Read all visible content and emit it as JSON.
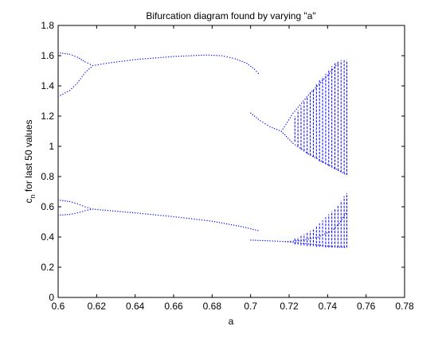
{
  "chart_data": {
    "type": "scatter",
    "title": "Bifurcation diagram found by varying \"a\"",
    "xlabel": "a",
    "ylabel_base": "c",
    "ylabel_sub": "n",
    "ylabel_rest": " for last 50 values",
    "xlim": [
      0.6,
      0.78
    ],
    "ylim": [
      0,
      1.8
    ],
    "xticks": [
      "0.6",
      "0.62",
      "0.64",
      "0.66",
      "0.68",
      "0.7",
      "0.72",
      "0.74",
      "0.76",
      "0.78"
    ],
    "yticks": [
      "0",
      "0.2",
      "0.4",
      "0.6",
      "0.8",
      "1",
      "1.2",
      "1.4",
      "1.6",
      "1.8"
    ],
    "grid": false,
    "legend": "none",
    "marker_color": "#0000ff",
    "series": [
      {
        "branches": [
          {
            "points": [
              [
                0.6,
                1.62
              ],
              [
                0.606,
                1.61
              ],
              [
                0.61,
                1.59
              ],
              [
                0.614,
                1.56
              ],
              [
                0.618,
                1.535
              ]
            ]
          },
          {
            "points": [
              [
                0.6,
                1.33
              ],
              [
                0.606,
                1.37
              ],
              [
                0.61,
                1.42
              ],
              [
                0.614,
                1.49
              ],
              [
                0.618,
                1.535
              ]
            ]
          },
          {
            "points": [
              [
                0.618,
                1.535
              ],
              [
                0.625,
                1.55
              ],
              [
                0.64,
                1.575
              ],
              [
                0.66,
                1.595
              ],
              [
                0.677,
                1.605
              ],
              [
                0.685,
                1.6
              ],
              [
                0.692,
                1.58
              ],
              [
                0.698,
                1.55
              ],
              [
                0.702,
                1.51
              ],
              [
                0.705,
                1.47
              ]
            ]
          },
          {
            "points": [
              [
                0.7,
                1.22
              ],
              [
                0.705,
                1.17
              ],
              [
                0.71,
                1.13
              ],
              [
                0.716,
                1.1
              ]
            ]
          },
          {
            "points": [
              [
                0.716,
                1.1
              ],
              [
                0.722,
                1.22
              ],
              [
                0.73,
                1.34
              ],
              [
                0.74,
                1.47
              ],
              [
                0.746,
                1.56
              ]
            ]
          },
          {
            "points": [
              [
                0.716,
                1.1
              ],
              [
                0.722,
                1.02
              ],
              [
                0.73,
                0.95
              ],
              [
                0.74,
                0.88
              ],
              [
                0.75,
                0.81
              ]
            ]
          },
          {
            "points": [
              [
                0.6,
                0.645
              ],
              [
                0.606,
                0.635
              ],
              [
                0.61,
                0.62
              ],
              [
                0.614,
                0.6
              ],
              [
                0.618,
                0.585
              ]
            ]
          },
          {
            "points": [
              [
                0.6,
                0.545
              ],
              [
                0.606,
                0.55
              ],
              [
                0.61,
                0.56
              ],
              [
                0.614,
                0.575
              ],
              [
                0.618,
                0.585
              ]
            ]
          },
          {
            "points": [
              [
                0.618,
                0.585
              ],
              [
                0.64,
                0.56
              ],
              [
                0.66,
                0.535
              ],
              [
                0.68,
                0.505
              ],
              [
                0.695,
                0.47
              ],
              [
                0.705,
                0.44
              ]
            ]
          },
          {
            "points": [
              [
                0.7,
                0.38
              ],
              [
                0.71,
                0.375
              ],
              [
                0.718,
                0.37
              ],
              [
                0.725,
                0.375
              ],
              [
                0.735,
                0.4
              ],
              [
                0.742,
                0.44
              ],
              [
                0.746,
                0.49
              ],
              [
                0.75,
                0.57
              ]
            ]
          },
          {
            "points": [
              [
                0.718,
                0.37
              ],
              [
                0.73,
                0.355
              ],
              [
                0.74,
                0.34
              ],
              [
                0.75,
                0.33
              ]
            ]
          }
        ],
        "vlines": [
          [
            0.723,
            1.03,
            1.2
          ],
          [
            0.7246,
            1.0,
            1.24
          ],
          [
            0.7262,
            0.98,
            1.27
          ],
          [
            0.7278,
            0.97,
            1.3
          ],
          [
            0.7294,
            0.95,
            1.33
          ],
          [
            0.731,
            0.94,
            1.36
          ],
          [
            0.7326,
            0.93,
            1.38
          ],
          [
            0.7342,
            0.92,
            1.41
          ],
          [
            0.7358,
            0.9,
            1.44
          ],
          [
            0.7374,
            0.89,
            1.46
          ],
          [
            0.739,
            0.88,
            1.48
          ],
          [
            0.7406,
            0.87,
            1.51
          ],
          [
            0.7422,
            0.86,
            1.53
          ],
          [
            0.7438,
            0.85,
            1.55
          ],
          [
            0.7454,
            0.84,
            1.56
          ],
          [
            0.747,
            0.83,
            1.57
          ],
          [
            0.7486,
            0.82,
            1.57
          ],
          [
            0.75,
            0.81,
            1.57
          ],
          [
            0.723,
            0.35,
            0.39
          ],
          [
            0.7246,
            0.35,
            0.4
          ],
          [
            0.7262,
            0.345,
            0.41
          ],
          [
            0.7278,
            0.345,
            0.42
          ],
          [
            0.7294,
            0.34,
            0.43
          ],
          [
            0.731,
            0.34,
            0.44
          ],
          [
            0.7326,
            0.34,
            0.45
          ],
          [
            0.7342,
            0.335,
            0.47
          ],
          [
            0.7358,
            0.335,
            0.49
          ],
          [
            0.7374,
            0.335,
            0.51
          ],
          [
            0.739,
            0.33,
            0.53
          ],
          [
            0.7406,
            0.33,
            0.55
          ],
          [
            0.7422,
            0.33,
            0.57
          ],
          [
            0.7438,
            0.33,
            0.59
          ],
          [
            0.7454,
            0.33,
            0.61
          ],
          [
            0.747,
            0.33,
            0.64
          ],
          [
            0.7486,
            0.33,
            0.67
          ],
          [
            0.75,
            0.33,
            0.69
          ]
        ]
      }
    ]
  }
}
